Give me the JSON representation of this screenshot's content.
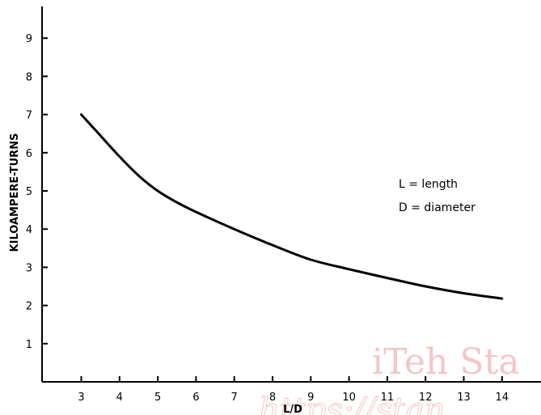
{
  "chart_data": {
    "type": "line",
    "xlabel": "L/D",
    "ylabel": "KILOAMPERE-TURNS",
    "xlim": [
      2,
      15
    ],
    "ylim": [
      0,
      9.8
    ],
    "xticks": [
      3,
      4,
      5,
      6,
      7,
      8,
      9,
      10,
      11,
      12,
      13,
      14
    ],
    "yticks": [
      1,
      2,
      3,
      4,
      5,
      6,
      7,
      8,
      9
    ],
    "grid": false,
    "series": [
      {
        "x": [
          3,
          3.5,
          4,
          4.5,
          5,
          5.5,
          6,
          7,
          8,
          9,
          10,
          11,
          12,
          13,
          14
        ],
        "y": [
          7.0,
          6.45,
          5.9,
          5.4,
          5.0,
          4.7,
          4.45,
          4.0,
          3.58,
          3.2,
          2.95,
          2.72,
          2.5,
          2.32,
          2.18
        ]
      }
    ],
    "annotations": [
      "L = length",
      "D = diameter"
    ]
  },
  "watermark": {
    "line1": "iTeh Sta",
    "line2": "https://stan"
  },
  "colors": {
    "line": "#000000",
    "axis": "#000000",
    "watermark": "#f4c6c6"
  }
}
